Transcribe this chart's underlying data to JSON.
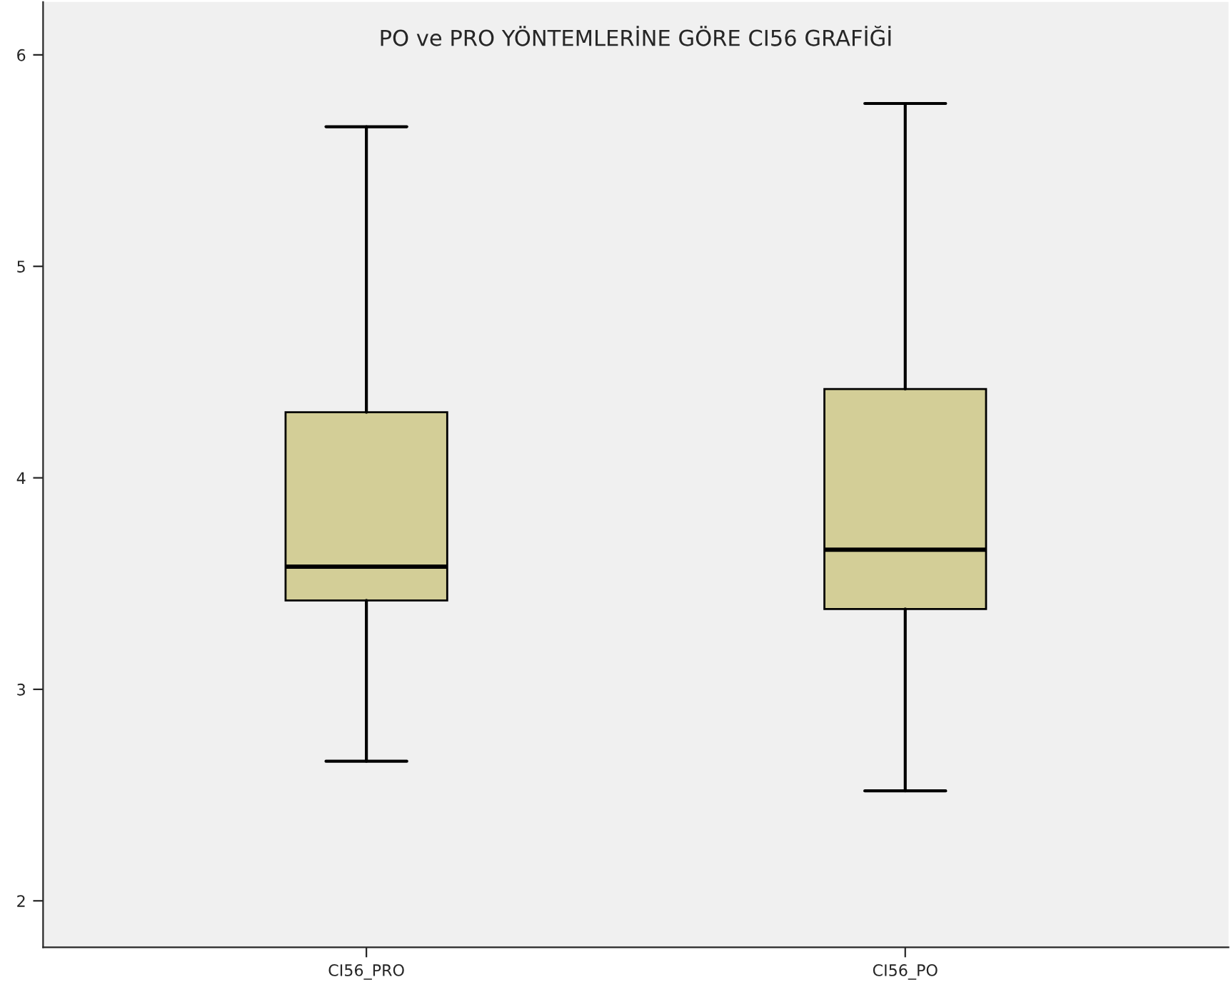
{
  "chart_data": {
    "type": "box",
    "title": "PO ve PRO YÖNTEMLERİNE GÖRE CI56 GRAFİĞİ",
    "categories": [
      "CI56_PRO",
      "CI56_PO"
    ],
    "boxes": [
      {
        "low": 2.66,
        "q1": 3.42,
        "median": 3.58,
        "q3": 4.31,
        "high": 5.66
      },
      {
        "low": 2.52,
        "q1": 3.38,
        "median": 3.66,
        "q3": 4.42,
        "high": 5.77
      }
    ],
    "color": "#d3ce97",
    "ylim": [
      1.78,
      6.25
    ],
    "yticks": [
      2,
      3,
      4,
      5,
      6
    ],
    "grid": false
  }
}
